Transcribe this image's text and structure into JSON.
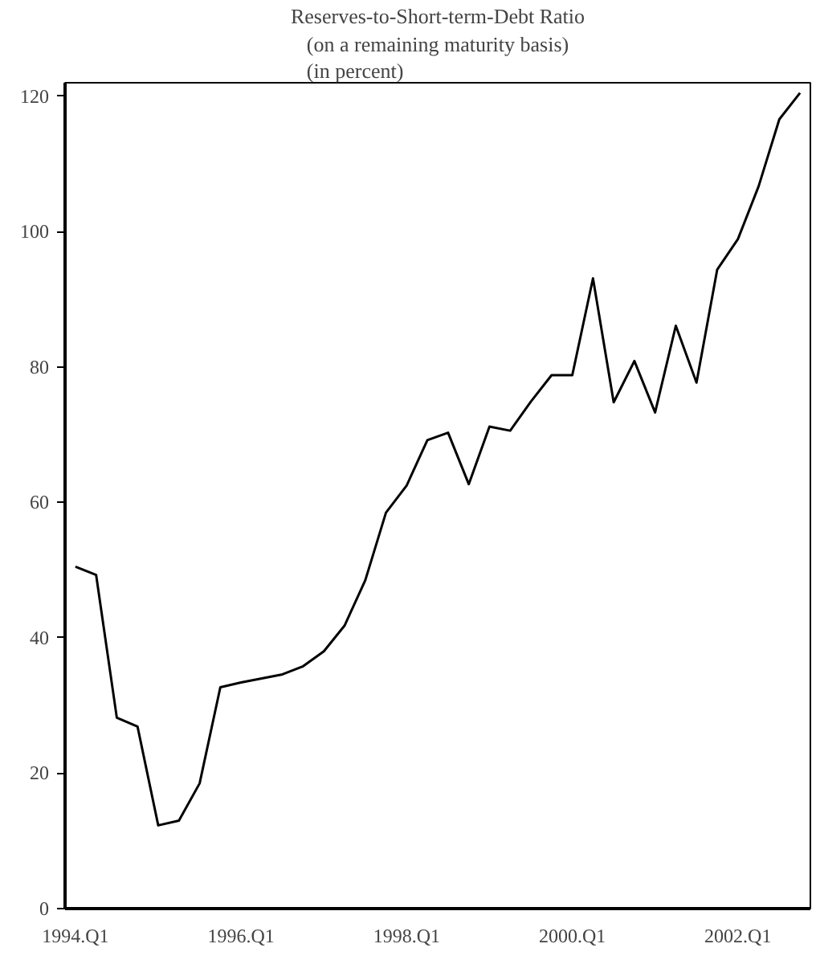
{
  "chart_data": {
    "type": "line",
    "title": "Reserves-to-Short-term-Debt Ratio",
    "subtitle": "(on a remaining maturity basis)\n(in percent)",
    "categories": [
      "1994.Q1",
      null,
      null,
      null,
      null,
      null,
      null,
      null,
      "1996.Q1",
      null,
      null,
      null,
      null,
      null,
      null,
      null,
      "1998.Q1",
      null,
      null,
      null,
      null,
      null,
      null,
      null,
      "2000.Q1",
      null,
      null,
      null,
      null,
      null,
      null,
      null,
      "2002.Q1",
      null,
      null,
      null
    ],
    "series": [
      {
        "color": "#000000",
        "values": [
          50.5,
          49.3,
          28.2,
          26.9,
          12.3,
          13.0,
          18.5,
          32.7,
          33.4,
          34.0,
          34.6,
          35.8,
          38.0,
          41.8,
          48.5,
          58.5,
          62.5,
          69.2,
          70.3,
          62.7,
          71.2,
          70.6,
          74.9,
          78.8,
          78.8,
          93.1,
          74.8,
          80.9,
          73.3,
          86.1,
          77.7,
          94.4,
          98.9,
          106.7,
          116.6,
          120.5
        ]
      }
    ],
    "ylim": [
      0,
      122
    ],
    "yticks": [
      0,
      20,
      40,
      60,
      80,
      100,
      120
    ],
    "grid": false,
    "line_style": "solid",
    "marker": "none"
  }
}
